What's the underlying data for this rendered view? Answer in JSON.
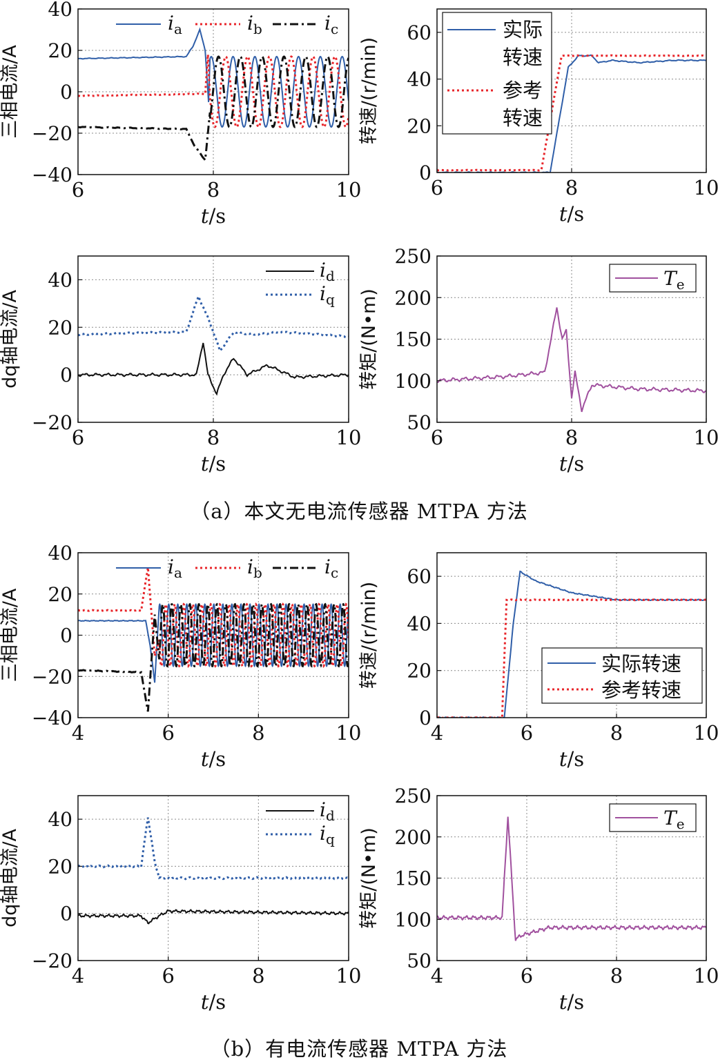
{
  "captions": {
    "a": "（a）本文无电流传感器 MTPA 方法",
    "b": "（b）有电流传感器 MTPA 方法"
  },
  "colors": {
    "blue": "#2f5ea8",
    "red": "#e8262b",
    "black": "#111111",
    "purple": "#a0509e",
    "grid": "#8a8a8a"
  },
  "chart_data": [
    {
      "id": "a1",
      "type": "line",
      "ylabel": "三相电流/A",
      "xlabel": "t/s",
      "xlim": [
        6,
        10
      ],
      "ylim": [
        -40,
        40
      ],
      "xticks": [
        "6",
        "8",
        "10"
      ],
      "yticks": [
        "40",
        "20",
        "0",
        "−20",
        "−40"
      ],
      "grid": true,
      "legend_position": "top",
      "series": [
        {
          "name": "ia",
          "label_main": "i",
          "label_sub": "a",
          "color": "blue",
          "dash": "solid",
          "points": [
            [
              6.0,
              16
            ],
            [
              7.6,
              17
            ],
            [
              7.7,
              22
            ],
            [
              7.8,
              30
            ],
            [
              7.88,
              20
            ],
            [
              7.93,
              -5
            ],
            [
              8.0,
              10
            ],
            [
              8.1,
              18
            ],
            [
              8.3,
              -18
            ],
            [
              8.5,
              18
            ],
            [
              8.7,
              -18
            ],
            [
              9.0,
              16
            ],
            [
              9.5,
              -17
            ],
            [
              10.0,
              -17
            ]
          ]
        },
        {
          "name": "ib",
          "label_main": "i",
          "label_sub": "b",
          "color": "red",
          "dash": "dot",
          "points": [
            [
              6.0,
              -2
            ],
            [
              7.88,
              -1
            ],
            [
              7.92,
              18
            ],
            [
              8.0,
              -18
            ],
            [
              8.2,
              17
            ],
            [
              8.5,
              -18
            ],
            [
              8.8,
              17
            ],
            [
              9.2,
              -17
            ],
            [
              9.6,
              16
            ],
            [
              10.0,
              15
            ]
          ]
        },
        {
          "name": "ic",
          "label_main": "i",
          "label_sub": "c",
          "color": "black",
          "dash": "dashdot",
          "points": [
            [
              6.0,
              -17
            ],
            [
              7.6,
              -18
            ],
            [
              7.72,
              -26
            ],
            [
              7.88,
              -33
            ],
            [
              7.95,
              -10
            ],
            [
              8.05,
              16
            ],
            [
              8.3,
              -18
            ],
            [
              8.6,
              17
            ],
            [
              9.0,
              -17
            ],
            [
              9.4,
              17
            ],
            [
              10.0,
              -5
            ]
          ]
        }
      ]
    },
    {
      "id": "a2",
      "type": "line",
      "ylabel": "转速/(r/min)",
      "xlabel": "t/s",
      "xlim": [
        6,
        10
      ],
      "ylim": [
        0,
        70
      ],
      "xticks": [
        "6",
        "8",
        "10"
      ],
      "yticks": [
        "60",
        "40",
        "20",
        "0"
      ],
      "grid": true,
      "legend_position": "top-left",
      "legend_rows": [
        {
          "series": "actual",
          "lines": [
            "实际",
            "转速"
          ]
        },
        {
          "series": "reference",
          "lines": [
            "参考",
            "转速"
          ]
        }
      ],
      "series": [
        {
          "name": "actual",
          "color": "blue",
          "dash": "solid",
          "points": [
            [
              6.0,
              0
            ],
            [
              7.68,
              0
            ],
            [
              7.8,
              20
            ],
            [
              7.95,
              45
            ],
            [
              8.1,
              50
            ],
            [
              8.3,
              50
            ],
            [
              8.4,
              47
            ],
            [
              8.6,
              48
            ],
            [
              9.0,
              47
            ],
            [
              9.5,
              48
            ],
            [
              10.0,
              48
            ]
          ]
        },
        {
          "name": "reference",
          "color": "red",
          "dash": "dot",
          "points": [
            [
              6.0,
              1
            ],
            [
              7.55,
              1
            ],
            [
              7.85,
              50
            ],
            [
              10.0,
              50
            ]
          ]
        }
      ]
    },
    {
      "id": "a3",
      "type": "line",
      "ylabel": "dq轴电流/A",
      "xlabel": "t/s",
      "xlim": [
        6,
        10
      ],
      "ylim": [
        -20,
        50
      ],
      "xticks": [
        "6",
        "8",
        "10"
      ],
      "yticks": [
        "40",
        "20",
        "0",
        "−20"
      ],
      "grid": true,
      "legend_position": "top-right",
      "series": [
        {
          "name": "id",
          "label_main": "i",
          "label_sub": "d",
          "color": "black",
          "dash": "solid",
          "points": [
            [
              6.0,
              0
            ],
            [
              7.75,
              0
            ],
            [
              7.85,
              14
            ],
            [
              7.92,
              0
            ],
            [
              8.05,
              -8
            ],
            [
              8.15,
              0
            ],
            [
              8.3,
              7
            ],
            [
              8.5,
              0
            ],
            [
              8.8,
              4
            ],
            [
              9.2,
              -1
            ],
            [
              10.0,
              0
            ]
          ]
        },
        {
          "name": "iq",
          "label_main": "i",
          "label_sub": "q",
          "color": "blue",
          "dash": "dot",
          "points": [
            [
              6.0,
              17
            ],
            [
              7.6,
              18
            ],
            [
              7.78,
              33
            ],
            [
              7.95,
              22
            ],
            [
              8.1,
              10
            ],
            [
              8.3,
              18
            ],
            [
              8.6,
              17
            ],
            [
              9.0,
              18
            ],
            [
              10.0,
              16
            ]
          ]
        }
      ]
    },
    {
      "id": "a4",
      "type": "line",
      "ylabel": "转矩/(N•m)",
      "xlabel": "t/s",
      "xlim": [
        6,
        10
      ],
      "ylim": [
        50,
        250
      ],
      "xticks": [
        "6",
        "8",
        "10"
      ],
      "yticks": [
        "250",
        "200",
        "150",
        "100",
        "50"
      ],
      "grid": true,
      "legend_position": "top-right",
      "series": [
        {
          "name": "Te",
          "label_main": "T",
          "label_sub": "e",
          "color": "purple",
          "dash": "solid",
          "points": [
            [
              6.0,
              100
            ],
            [
              7.0,
              105
            ],
            [
              7.6,
              110
            ],
            [
              7.78,
              188
            ],
            [
              7.86,
              150
            ],
            [
              7.92,
              160
            ],
            [
              8.0,
              80
            ],
            [
              8.05,
              110
            ],
            [
              8.15,
              65
            ],
            [
              8.3,
              95
            ],
            [
              9.0,
              90
            ],
            [
              10.0,
              88
            ]
          ]
        }
      ]
    },
    {
      "id": "b1",
      "type": "line",
      "ylabel": "三相电流/A",
      "xlabel": "t/s",
      "xlim": [
        4,
        10
      ],
      "ylim": [
        -40,
        40
      ],
      "xticks": [
        "4",
        "6",
        "8",
        "10"
      ],
      "yticks": [
        "40",
        "20",
        "0",
        "−20",
        "−40"
      ],
      "grid": true,
      "legend_position": "top",
      "series": [
        {
          "name": "ia",
          "label_main": "i",
          "label_sub": "a",
          "color": "blue",
          "dash": "solid",
          "points": [
            [
              4.0,
              7
            ],
            [
              5.5,
              7
            ],
            [
              5.6,
              -5
            ],
            [
              5.7,
              -23
            ],
            [
              5.85,
              15
            ],
            [
              10.0,
              15
            ]
          ]
        },
        {
          "name": "ib",
          "label_main": "i",
          "label_sub": "b",
          "color": "red",
          "dash": "dot",
          "points": [
            [
              4.0,
              12
            ],
            [
              5.4,
              12
            ],
            [
              5.55,
              33
            ],
            [
              5.7,
              -10
            ],
            [
              5.85,
              15
            ],
            [
              10.0,
              15
            ]
          ]
        },
        {
          "name": "ic",
          "label_main": "i",
          "label_sub": "c",
          "color": "black",
          "dash": "dashdot",
          "points": [
            [
              4.0,
              -17
            ],
            [
              5.4,
              -18
            ],
            [
              5.55,
              -37
            ],
            [
              5.7,
              10
            ],
            [
              5.85,
              -15
            ],
            [
              10.0,
              -15
            ]
          ]
        }
      ]
    },
    {
      "id": "b2",
      "type": "line",
      "ylabel": "转速/(r/min)",
      "xlabel": "t/s",
      "xlim": [
        4,
        10
      ],
      "ylim": [
        0,
        70
      ],
      "xticks": [
        "4",
        "6",
        "8",
        "10"
      ],
      "yticks": [
        "60",
        "40",
        "20",
        "0"
      ],
      "grid": true,
      "legend_position": "bottom-right",
      "legend_rows": [
        {
          "series": "actual",
          "lines": [
            "实际转速"
          ]
        },
        {
          "series": "reference",
          "lines": [
            "参考转速"
          ]
        }
      ],
      "series": [
        {
          "name": "actual",
          "color": "blue",
          "dash": "solid",
          "points": [
            [
              4.0,
              0
            ],
            [
              5.5,
              0
            ],
            [
              5.7,
              40
            ],
            [
              5.85,
              62
            ],
            [
              6.2,
              58
            ],
            [
              7.0,
              53
            ],
            [
              8.0,
              50
            ],
            [
              9.0,
              50
            ],
            [
              10.0,
              50
            ]
          ]
        },
        {
          "name": "reference",
          "color": "red",
          "dash": "dot",
          "points": [
            [
              4.0,
              0
            ],
            [
              5.45,
              0
            ],
            [
              5.55,
              50
            ],
            [
              10.0,
              50
            ]
          ]
        }
      ]
    },
    {
      "id": "b3",
      "type": "line",
      "ylabel": "dq轴电流/A",
      "xlabel": "t/s",
      "xlim": [
        4,
        10
      ],
      "ylim": [
        -20,
        50
      ],
      "xticks": [
        "4",
        "6",
        "8",
        "10"
      ],
      "yticks": [
        "40",
        "20",
        "0",
        "−20"
      ],
      "grid": true,
      "legend_position": "top-right",
      "series": [
        {
          "name": "id",
          "label_main": "i",
          "label_sub": "d",
          "color": "black",
          "dash": "solid",
          "points": [
            [
              4.0,
              -1
            ],
            [
              5.4,
              -1
            ],
            [
              5.55,
              -4
            ],
            [
              5.8,
              -1
            ],
            [
              6.0,
              1
            ],
            [
              10.0,
              0
            ]
          ]
        },
        {
          "name": "iq",
          "label_main": "i",
          "label_sub": "q",
          "color": "blue",
          "dash": "dot",
          "points": [
            [
              4.0,
              20
            ],
            [
              5.4,
              20
            ],
            [
              5.55,
              41
            ],
            [
              5.7,
              22
            ],
            [
              5.8,
              15
            ],
            [
              10.0,
              15
            ]
          ]
        }
      ]
    },
    {
      "id": "b4",
      "type": "line",
      "ylabel": "转矩/(N•m)",
      "xlabel": "t/s",
      "xlim": [
        4,
        10
      ],
      "ylim": [
        50,
        250
      ],
      "xticks": [
        "4",
        "6",
        "8",
        "10"
      ],
      "yticks": [
        "250",
        "200",
        "150",
        "100",
        "50"
      ],
      "grid": true,
      "legend_position": "top-right",
      "series": [
        {
          "name": "Te",
          "label_main": "T",
          "label_sub": "e",
          "color": "purple",
          "dash": "solid",
          "points": [
            [
              4.0,
              102
            ],
            [
              5.45,
              102
            ],
            [
              5.58,
              225
            ],
            [
              5.75,
              75
            ],
            [
              5.85,
              80
            ],
            [
              6.5,
              90
            ],
            [
              8.0,
              90
            ],
            [
              10.0,
              90
            ]
          ]
        }
      ]
    }
  ]
}
